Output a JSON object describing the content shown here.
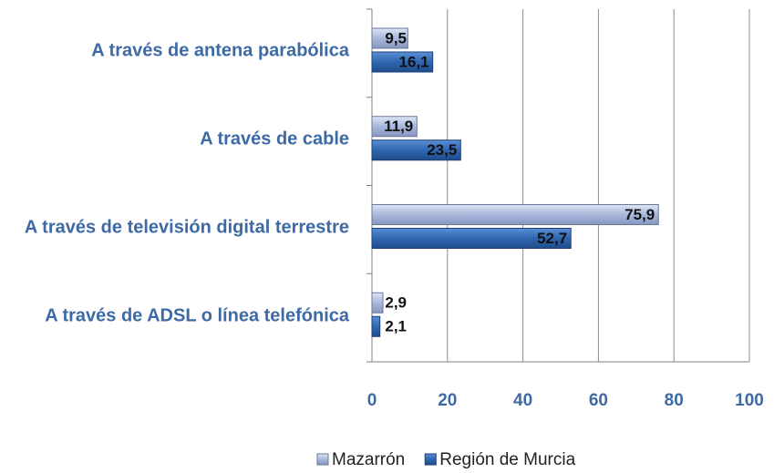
{
  "chart_data": {
    "type": "hbar",
    "categories": [
      "A través de antena parabólica",
      "A través de cable",
      "A través de televisión digital terrestre",
      "A través de ADSL o línea telefónica"
    ],
    "series": [
      {
        "name": "Mazarrón",
        "color": "#a8b8dc",
        "values": [
          9.5,
          11.9,
          75.9,
          2.9
        ],
        "value_labels": [
          "9,5",
          "11,9",
          "75,9",
          "2,9"
        ]
      },
      {
        "name": "Región de Murcia",
        "color": "#2f66b0",
        "values": [
          16.1,
          23.5,
          52.7,
          2.1
        ],
        "value_labels": [
          "16,1",
          "23,5",
          "52,7",
          "2,1"
        ]
      }
    ],
    "xlim": [
      0,
      100
    ],
    "xticks": [
      0,
      20,
      40,
      60,
      80,
      100
    ],
    "grid": true,
    "legend": "bottom"
  }
}
